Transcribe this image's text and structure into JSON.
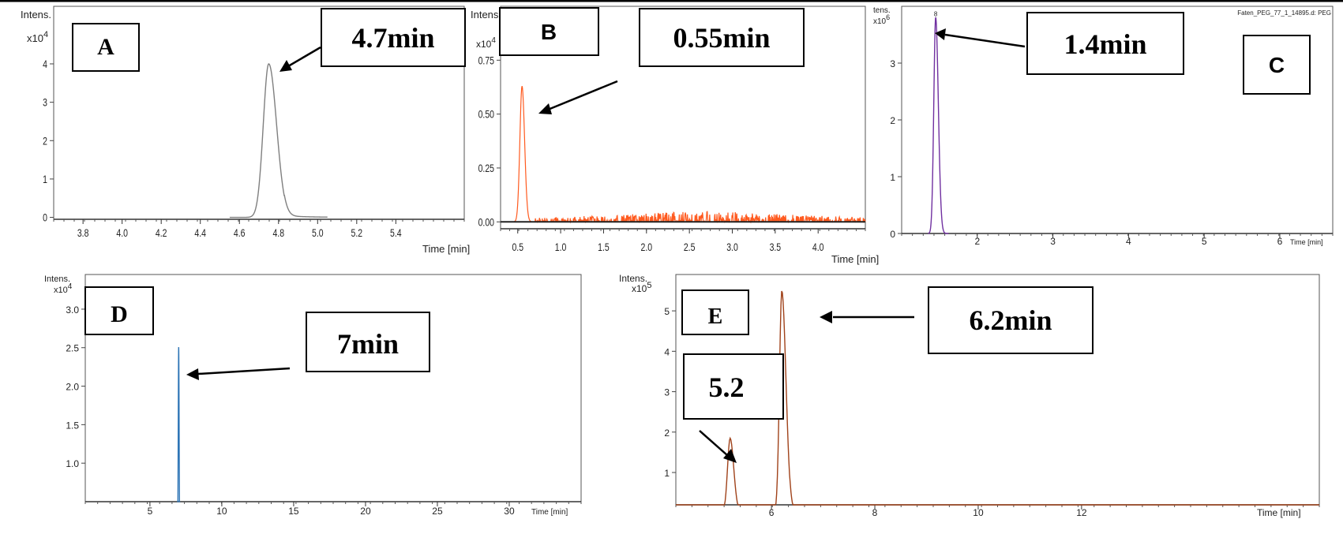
{
  "panels": [
    {
      "id": "A",
      "panel_label": "A",
      "y_title": "Intens.",
      "y_scale": "x10",
      "y_exp": "4",
      "x_title": "Time [min]",
      "annotation": "4.7min",
      "color": "#7f7f7f"
    },
    {
      "id": "B",
      "panel_label": "B",
      "y_title": "Intens.",
      "y_scale": "x10",
      "y_exp": "4",
      "x_title": "Time [min]",
      "annotation": "0.55min",
      "color": "#ff5a1f"
    },
    {
      "id": "C",
      "panel_label": "C",
      "y_title": "tens.",
      "y_scale": "x10",
      "y_exp": "6",
      "x_title": "Time [min]",
      "file_label": "Faten_PEG_77_1_14895.d: PEG",
      "annotation": "1.4min",
      "color": "#7030a0"
    },
    {
      "id": "D",
      "panel_label": "D",
      "y_title": "Intens.",
      "y_scale": "x10",
      "y_exp": "4",
      "x_title": "Time [min]",
      "annotation": "7min",
      "color": "#2e75b6"
    },
    {
      "id": "E",
      "panel_label": "E",
      "y_title": "Intens.",
      "y_scale": "x10",
      "y_exp": "5",
      "x_title": "Time [min]",
      "annotation": "6.2min",
      "annotation2": "5.2",
      "color": "#a0421a"
    }
  ],
  "chart_data": [
    {
      "type": "line",
      "panel": "A",
      "xlabel": "Time [min]",
      "ylabel": "Intens. x10^4",
      "xlim": [
        3.65,
        5.75
      ],
      "ylim": [
        -0.05,
        5.5
      ],
      "xticks": [
        "3.8",
        "4.0",
        "4.2",
        "4.4",
        "4.6",
        "4.8",
        "5.0",
        "5.2",
        "5.4"
      ],
      "yticks": [
        "0",
        "1",
        "2",
        "3",
        "4"
      ],
      "peaks": [
        {
          "x": 4.75,
          "y": 4.0,
          "sigma_left": 0.028,
          "sigma_right": 0.04,
          "tail": 0.12
        }
      ],
      "noise": 0.0
    },
    {
      "type": "line",
      "panel": "B",
      "xlabel": "Time [min]",
      "ylabel": "Intens. x10^4",
      "xlim": [
        0.3,
        4.55
      ],
      "ylim": [
        -0.01,
        1.0
      ],
      "xticks": [
        "0.5",
        "1.0",
        "1.5",
        "2.0",
        "2.5",
        "3.0",
        "3.5",
        "4.0"
      ],
      "yticks": [
        "0.00",
        "0.25",
        "0.50",
        "0.75"
      ],
      "peaks": [
        {
          "x": 0.55,
          "y": 0.63,
          "sigma_left": 0.025,
          "sigma_right": 0.03,
          "tail": 0.0
        }
      ],
      "noise": 0.04
    },
    {
      "type": "line",
      "panel": "C",
      "xlabel": "Time [min]",
      "ylabel": "tens. x10^6",
      "xlim": [
        1.0,
        6.7
      ],
      "ylim": [
        0,
        4.0
      ],
      "xticks": [
        "2",
        "3",
        "4",
        "5",
        "6"
      ],
      "yticks": [
        "0",
        "1",
        "2",
        "3"
      ],
      "peaks": [
        {
          "x": 1.45,
          "y": 3.8,
          "sigma_left": 0.025,
          "sigma_right": 0.035,
          "tail": 0.0
        }
      ],
      "noise": 0.0
    },
    {
      "type": "line",
      "panel": "D",
      "xlabel": "Time [min]",
      "ylabel": "Intens. x10^4",
      "xlim": [
        0.5,
        35.0
      ],
      "ylim": [
        0.5,
        3.45
      ],
      "xticks": [
        "5",
        "10",
        "15",
        "20",
        "25",
        "30"
      ],
      "yticks": [
        "1.0",
        "1.5",
        "2.0",
        "2.5",
        "3.0"
      ],
      "peaks": [
        {
          "x": 7.0,
          "y": 2.5,
          "sigma_left": 0.03,
          "sigma_right": 0.03,
          "tail": 0.0
        }
      ],
      "noise": 0.0
    },
    {
      "type": "line",
      "panel": "E",
      "xlabel": "Time [min]",
      "ylabel": "Intens. x10^5",
      "xlim": [
        4.15,
        16.6
      ],
      "ylim": [
        0.2,
        5.9
      ],
      "xticks": [
        "6",
        "8",
        "10",
        "12"
      ],
      "yticks": [
        "1",
        "2",
        "3",
        "4",
        "5"
      ],
      "peaks": [
        {
          "x": 5.2,
          "y": 1.85,
          "sigma_left": 0.05,
          "sigma_right": 0.07,
          "tail": 0.0
        },
        {
          "x": 6.2,
          "y": 5.5,
          "sigma_left": 0.045,
          "sigma_right": 0.08,
          "tail": 0.2
        }
      ],
      "noise": 0.0
    }
  ]
}
